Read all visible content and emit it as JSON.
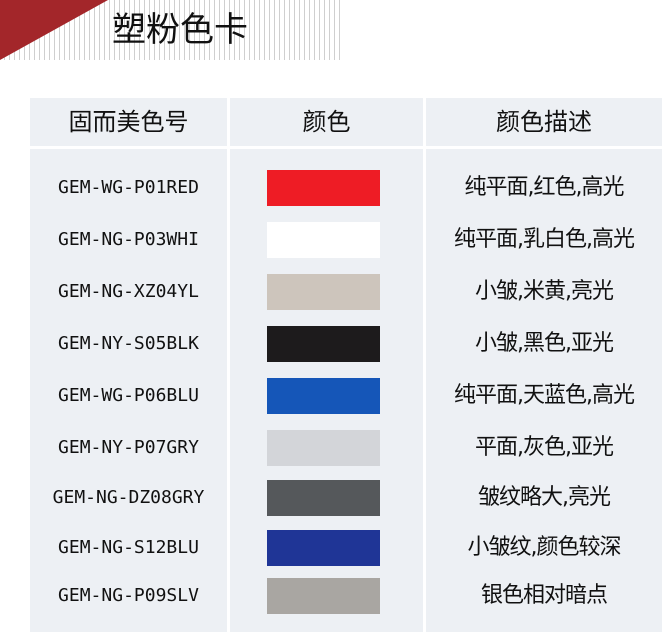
{
  "title": "塑粉色卡",
  "headers": [
    "固而美色号",
    "颜色",
    "颜色描述"
  ],
  "rows": [
    {
      "code": "GEM-WG-P01RED",
      "color": "#ee1c25",
      "desc": "纯平面,红色,高光"
    },
    {
      "code": "GEM-NG-P03WHI",
      "color": "#ffffff",
      "desc": "纯平面,乳白色,高光"
    },
    {
      "code": "GEM-NG-XZ04YL",
      "color": "#cdc5bc",
      "desc": "小皱,米黄,亮光"
    },
    {
      "code": "GEM-NY-S05BLK",
      "color": "#1d1b1c",
      "desc": "小皱,黑色,亚光"
    },
    {
      "code": "GEM-WG-P06BLU",
      "color": "#1556b8",
      "desc": "纯平面,天蓝色,高光"
    },
    {
      "code": "GEM-NY-P07GRY",
      "color": "#d3d5d9",
      "desc": "平面,灰色,亚光"
    },
    {
      "code": "GEM-NG-DZ08GRY",
      "color": "#55585b",
      "desc": "皱纹略大,亮光"
    },
    {
      "code": "GEM-NG-S12BLU",
      "color": "#1f3596",
      "desc": "小皱纹,颜色较深"
    },
    {
      "code": "GEM-NG-P09SLV",
      "color": "#a9a6a2",
      "desc": "银色相对暗点"
    }
  ]
}
